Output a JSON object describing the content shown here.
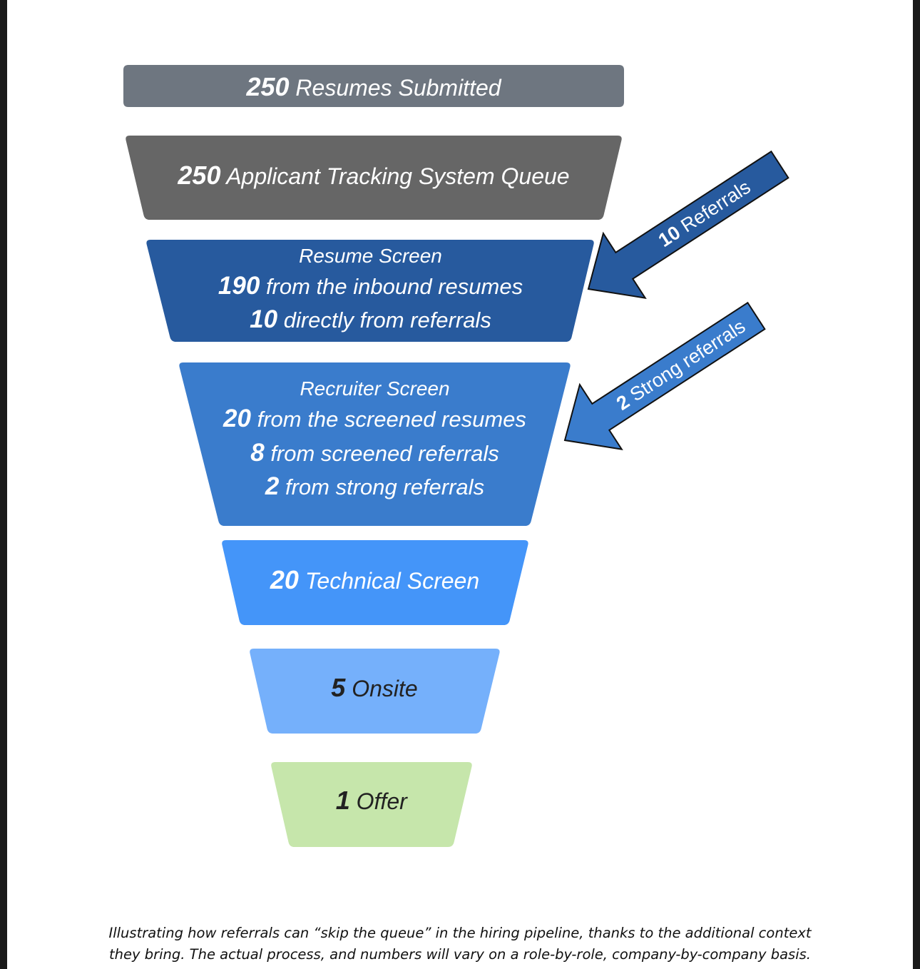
{
  "stages": [
    {
      "id": "resumes-submitted",
      "color": "#6e7680",
      "text_color": "#ffffff",
      "lines": [
        {
          "num": "250",
          "text": " Resumes Submitted"
        }
      ]
    },
    {
      "id": "ats-queue",
      "color": "#666666",
      "text_color": "#ffffff",
      "lines": [
        {
          "num": "250",
          "text": " Applicant Tracking System Queue"
        }
      ]
    },
    {
      "id": "resume-screen",
      "color": "#275a9e",
      "text_color": "#ffffff",
      "lines": [
        {
          "num": "",
          "text": "Resume Screen"
        },
        {
          "num": "190",
          "text": " from the inbound resumes"
        },
        {
          "num": "10",
          "text": " directly from referrals"
        }
      ]
    },
    {
      "id": "recruiter-screen",
      "color": "#3a7ccc",
      "text_color": "#ffffff",
      "lines": [
        {
          "num": "",
          "text": "Recruiter Screen"
        },
        {
          "num": "20",
          "text": " from the screened resumes"
        },
        {
          "num": "8",
          "text": " from screened referrals"
        },
        {
          "num": "2",
          "text": " from strong referrals"
        }
      ]
    },
    {
      "id": "technical-screen",
      "color": "#4495f9",
      "text_color": "#ffffff",
      "lines": [
        {
          "num": "20",
          "text": " Technical Screen"
        }
      ]
    },
    {
      "id": "onsite",
      "color": "#75b0fb",
      "text_color": "#222222",
      "lines": [
        {
          "num": "5",
          "text": " Onsite"
        }
      ]
    },
    {
      "id": "offer",
      "color": "#c6e6ab",
      "text_color": "#222222",
      "lines": [
        {
          "num": "1",
          "text": " Offer"
        }
      ]
    }
  ],
  "arrows": [
    {
      "id": "referrals-arrow",
      "num": "10",
      "text": " Referrals",
      "color": "#275a9e",
      "target": "resume-screen"
    },
    {
      "id": "strong-referrals-arrow",
      "num": "2",
      "text": " Strong referrals",
      "color": "#3a7ccc",
      "target": "recruiter-screen"
    }
  ],
  "caption": {
    "line1": "Illustrating how referrals can “skip the queue” in the hiring pipeline, thanks to the additional context",
    "line2": "they bring. The actual process, and numbers will vary on a role-by-role, company-by-company basis."
  }
}
